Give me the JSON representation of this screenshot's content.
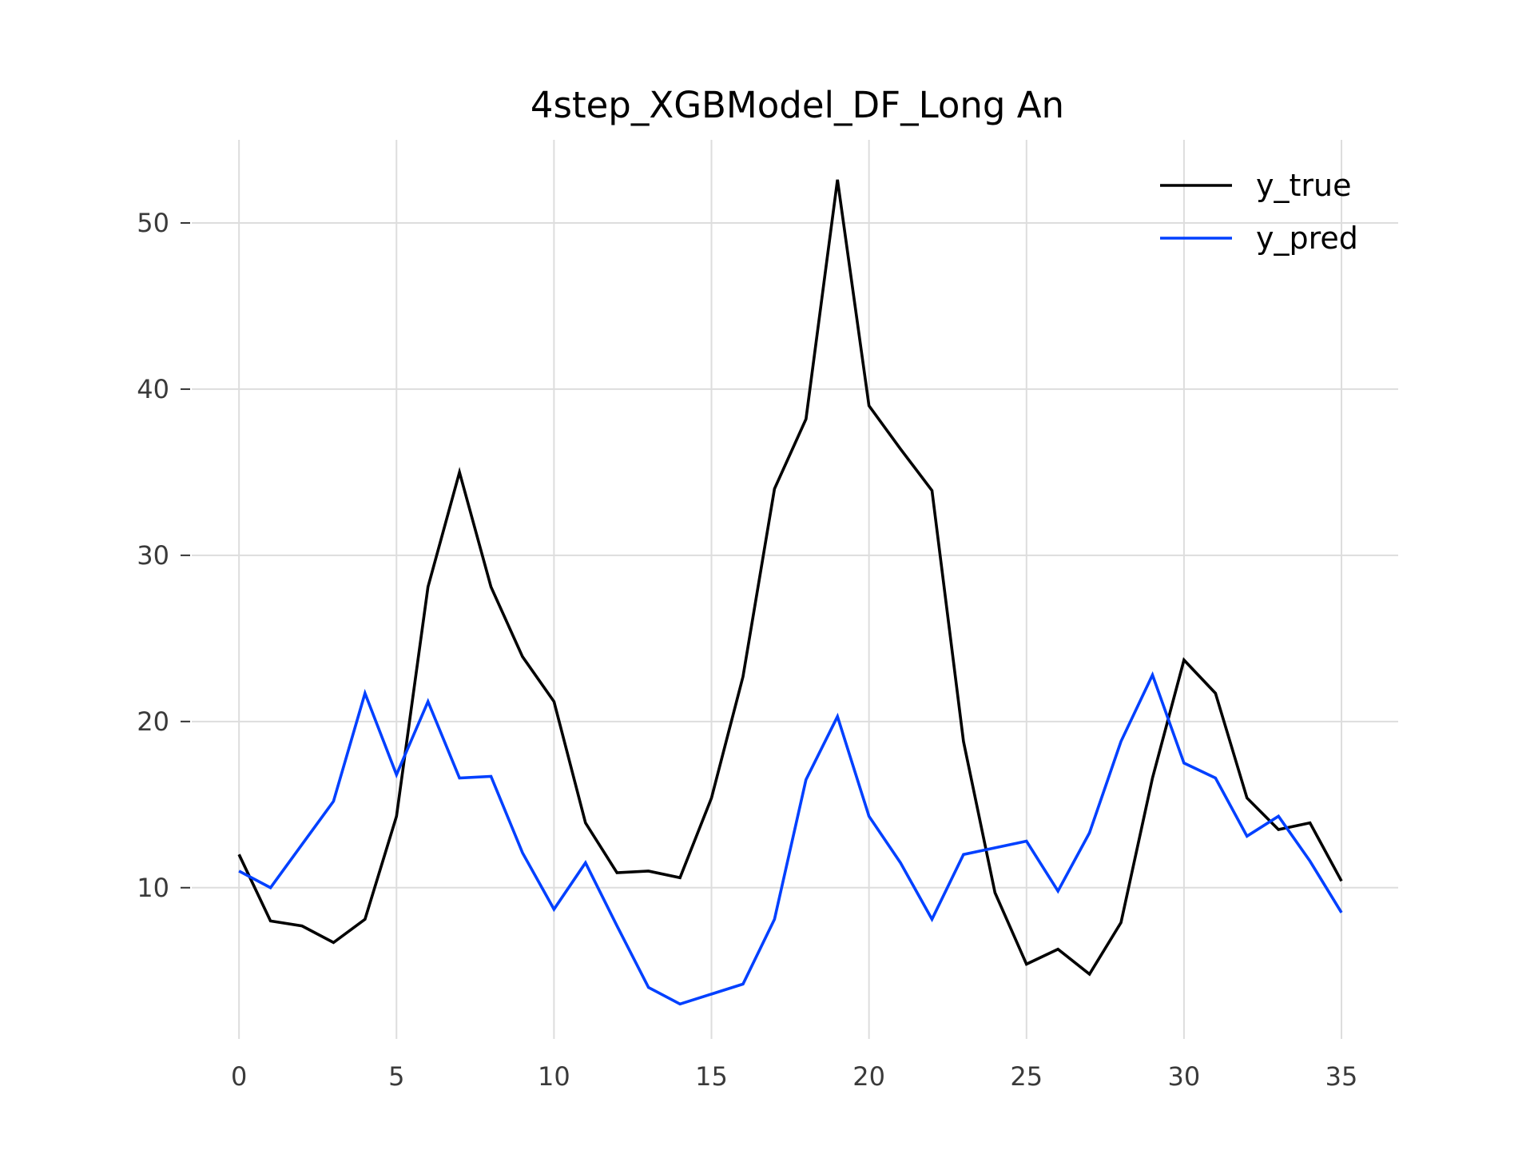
{
  "chart_data": {
    "type": "line",
    "title": "4step_XGBModel_DF_Long An",
    "xlabel": "",
    "ylabel": "",
    "x": [
      0,
      1,
      2,
      3,
      4,
      5,
      6,
      7,
      8,
      9,
      10,
      11,
      12,
      13,
      14,
      15,
      16,
      17,
      18,
      19,
      20,
      21,
      22,
      23,
      24,
      25,
      26,
      27,
      28,
      29,
      30,
      31,
      32,
      33,
      34,
      35
    ],
    "xlim": [
      -1.5,
      36.8
    ],
    "ylim": [
      0.9,
      55.0
    ],
    "xticks": [
      0,
      5,
      10,
      15,
      20,
      25,
      30,
      35
    ],
    "xtick_labels": [
      "0",
      "5",
      "10",
      "15",
      "20",
      "25",
      "30",
      "35"
    ],
    "yticks": [
      10,
      20,
      30,
      40,
      50
    ],
    "ytick_labels": [
      "10",
      "20",
      "30",
      "40",
      "50"
    ],
    "grid": true,
    "legend_position": "top-right",
    "series": [
      {
        "name": "y_true",
        "color": "#000000",
        "values": [
          12.0,
          8.0,
          7.7,
          6.7,
          8.1,
          14.3,
          28.1,
          35.0,
          28.1,
          23.9,
          21.2,
          13.9,
          10.9,
          11.0,
          10.6,
          15.4,
          22.7,
          34.0,
          38.2,
          52.6,
          39.0,
          36.4,
          33.9,
          18.8,
          9.7,
          5.4,
          6.3,
          4.8,
          7.9,
          16.6,
          23.7,
          21.7,
          15.4,
          13.5,
          13.9,
          10.4
        ]
      },
      {
        "name": "y_pred",
        "color": "#0040ff",
        "values": [
          11.0,
          10.0,
          12.6,
          15.2,
          21.7,
          16.8,
          21.2,
          16.6,
          16.7,
          12.1,
          8.7,
          11.5,
          7.7,
          4.0,
          3.0,
          3.6,
          4.2,
          8.1,
          16.5,
          20.3,
          14.3,
          11.5,
          8.1,
          12.0,
          12.4,
          12.8,
          9.8,
          13.3,
          18.8,
          22.8,
          17.5,
          16.6,
          13.1,
          14.3,
          11.6,
          8.5
        ]
      }
    ]
  }
}
